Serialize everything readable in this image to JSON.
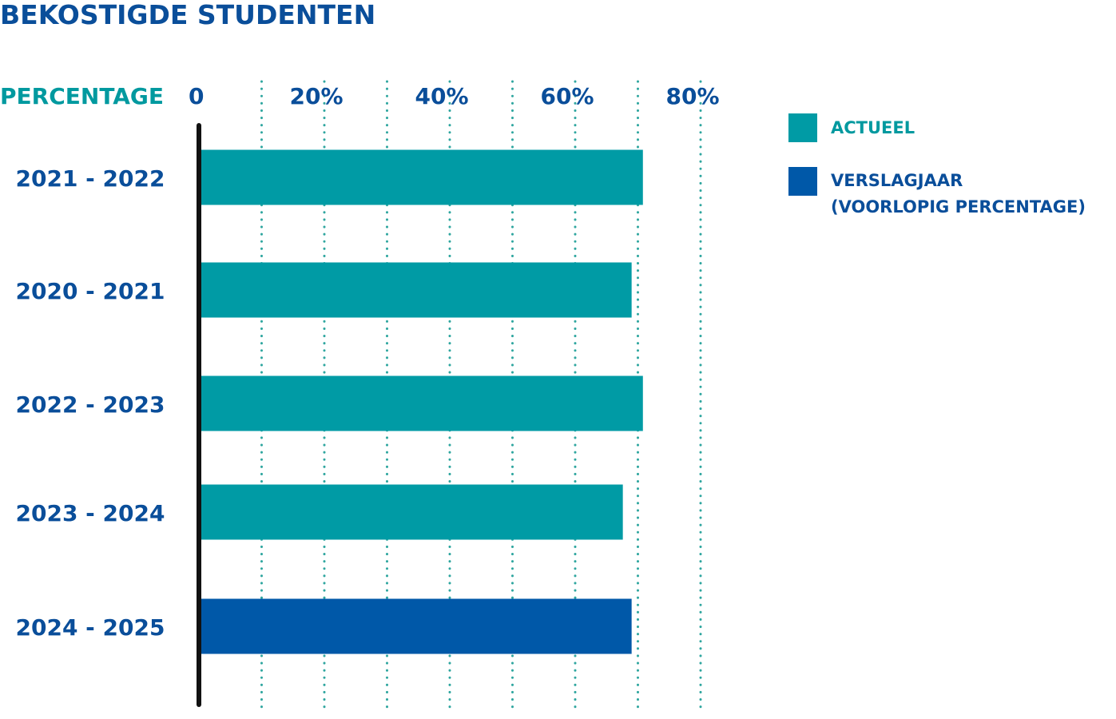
{
  "colors": {
    "actueel": "#009ba5",
    "verslagjaar": "#0058a8",
    "title": "#0a4e9a",
    "axis_label": "#00999f",
    "gridline": "#2fa69f",
    "axis_line": "#111111"
  },
  "chart_data": {
    "type": "bar",
    "orientation": "horizontal",
    "title": "BEKOSTIGDE STUDENTEN",
    "xlabel": "PERCENTAGE",
    "ylabel": "",
    "xlim": [
      0,
      80
    ],
    "x_ticks": [
      0,
      10,
      20,
      30,
      40,
      50,
      60,
      70,
      80
    ],
    "x_tick_labels": [
      "0",
      "20%",
      "40%",
      "60%",
      "80%"
    ],
    "grid": true,
    "legend_position": "right",
    "categories": [
      "2021 - 2022",
      "2020 - 2021",
      "2022 - 2023",
      "2023 - 2024",
      "2024 - 2025"
    ],
    "values": [
      70.8,
      69.0,
      70.8,
      67.6,
      69.0
    ],
    "bar_series": [
      "actueel",
      "actueel",
      "actueel",
      "actueel",
      "verslagjaar"
    ],
    "legend": [
      {
        "key": "actueel",
        "label": "ACTUEEL"
      },
      {
        "key": "verslagjaar",
        "label_lines": [
          "VERSLAGJAAR",
          "(VOORLOPIG PERCENTAGE)"
        ]
      }
    ]
  }
}
